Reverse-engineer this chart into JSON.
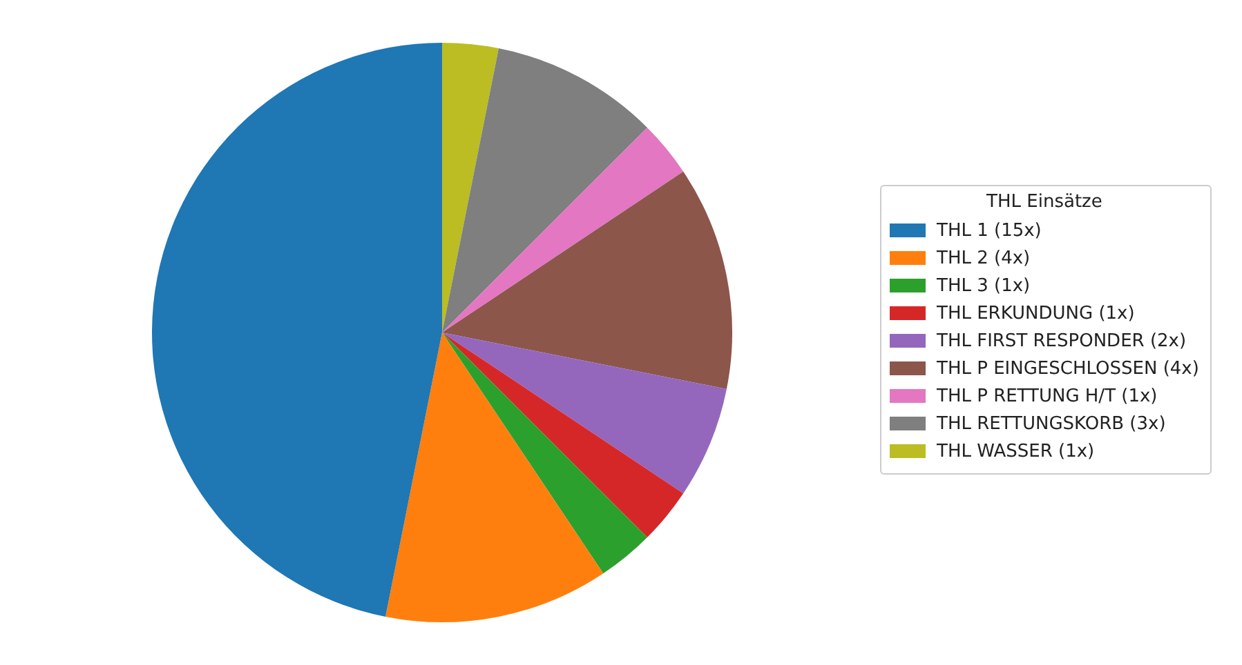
{
  "chart_data": {
    "type": "pie",
    "legend_title": "THL Einsätze",
    "categories": [
      "THL 1 (15x)",
      "THL 2 (4x)",
      "THL 3 (1x)",
      "THL ERKUNDUNG (1x)",
      "THL FIRST RESPONDER (2x)",
      "THL P EINGESCHLOSSEN (4x)",
      "THL P RETTUNG H/T (1x)",
      "THL RETTUNGSKORB (3x)",
      "THL WASSER (1x)"
    ],
    "values": [
      15,
      4,
      1,
      1,
      2,
      4,
      1,
      3,
      1
    ],
    "colors": [
      "#1f77b4",
      "#ff7f0e",
      "#2ca02c",
      "#d62728",
      "#9467bd",
      "#8c564b",
      "#e377c2",
      "#7f7f7f",
      "#bcbd22"
    ],
    "legend": "right"
  }
}
